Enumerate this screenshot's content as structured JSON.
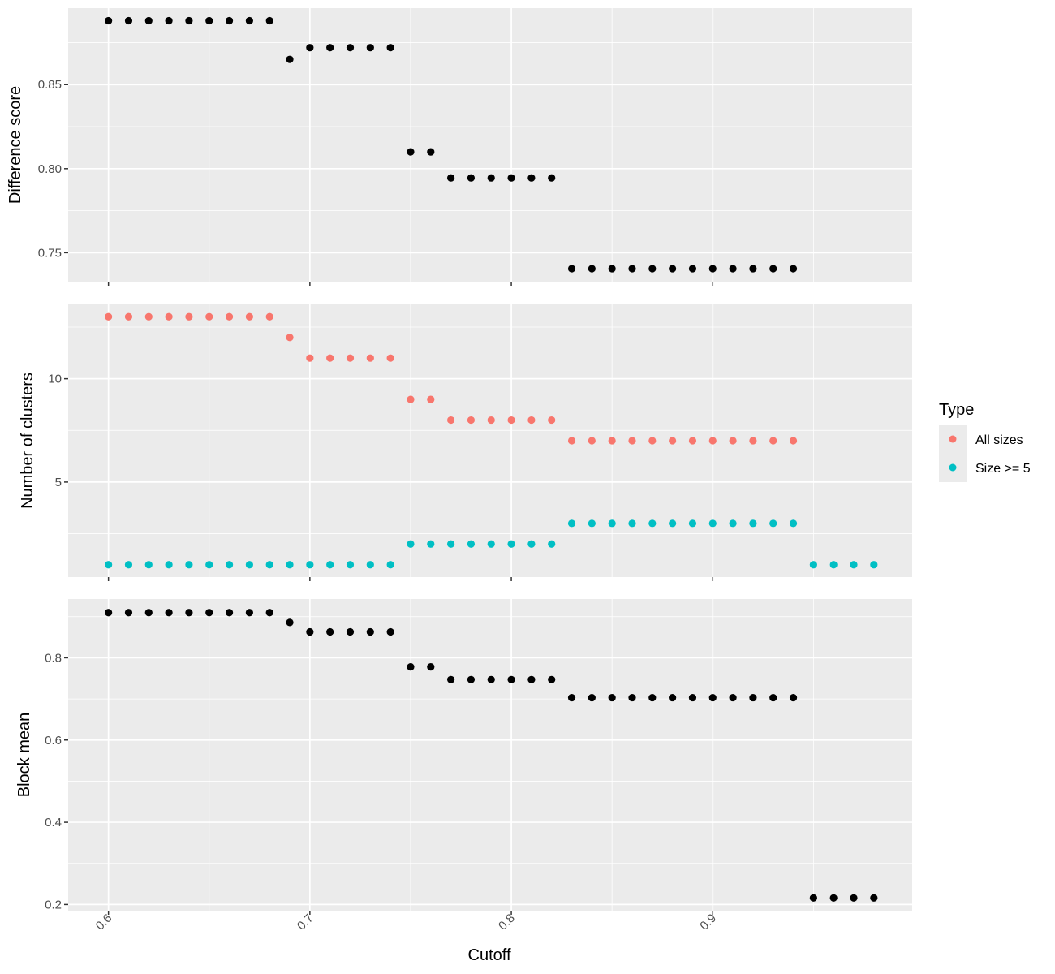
{
  "chart_data": {
    "type": "scatter",
    "xlabel": "Cutoff",
    "x_ticks": [
      0.6,
      0.7,
      0.8,
      0.9
    ],
    "x_tick_labels": [
      "0.6",
      "0.7",
      "0.8",
      "0.9"
    ],
    "xlim": [
      0.58,
      0.999
    ],
    "background": "#ebebeb",
    "grid": true,
    "legend": {
      "title": "Type",
      "placement": "right",
      "entries": [
        {
          "label": "All sizes",
          "color": "#f8766d"
        },
        {
          "label": "Size >= 5",
          "color": "#00bfc4"
        }
      ]
    },
    "panels": [
      {
        "ylabel": "Difference score",
        "ylim": [
          0.7328,
          0.8955
        ],
        "y_ticks": [
          0.75,
          0.8,
          0.85
        ],
        "y_tick_labels": [
          "0.75",
          "0.80",
          "0.85"
        ],
        "series": [
          {
            "color": "#000000",
            "x": [
              0.6,
              0.61,
              0.62,
              0.63,
              0.64,
              0.65,
              0.66,
              0.67,
              0.68,
              0.69,
              0.7,
              0.71,
              0.72,
              0.73,
              0.74,
              0.75,
              0.76,
              0.77,
              0.78,
              0.79,
              0.8,
              0.81,
              0.82,
              0.83,
              0.84,
              0.85,
              0.86,
              0.87,
              0.88,
              0.89,
              0.9,
              0.91,
              0.92,
              0.93,
              0.94
            ],
            "y": [
              0.888,
              0.888,
              0.888,
              0.888,
              0.888,
              0.888,
              0.888,
              0.888,
              0.888,
              0.865,
              0.872,
              0.872,
              0.872,
              0.872,
              0.872,
              0.81,
              0.81,
              0.7945,
              0.7945,
              0.7945,
              0.7945,
              0.7945,
              0.7945,
              0.7405,
              0.7405,
              0.7405,
              0.7405,
              0.7405,
              0.7405,
              0.7405,
              0.7405,
              0.7405,
              0.7405,
              0.7405,
              0.7405
            ]
          }
        ]
      },
      {
        "ylabel": "Number of clusters",
        "ylim": [
          0.4,
          13.6
        ],
        "y_ticks": [
          5,
          10
        ],
        "y_tick_labels": [
          "5",
          "10"
        ],
        "series": [
          {
            "name": "All sizes",
            "color": "#f8766d",
            "x": [
              0.6,
              0.61,
              0.62,
              0.63,
              0.64,
              0.65,
              0.66,
              0.67,
              0.68,
              0.69,
              0.7,
              0.71,
              0.72,
              0.73,
              0.74,
              0.75,
              0.76,
              0.77,
              0.78,
              0.79,
              0.8,
              0.81,
              0.82,
              0.83,
              0.84,
              0.85,
              0.86,
              0.87,
              0.88,
              0.89,
              0.9,
              0.91,
              0.92,
              0.93,
              0.94
            ],
            "y": [
              13,
              13,
              13,
              13,
              13,
              13,
              13,
              13,
              13,
              12,
              11,
              11,
              11,
              11,
              11,
              9,
              9,
              8,
              8,
              8,
              8,
              8,
              8,
              7,
              7,
              7,
              7,
              7,
              7,
              7,
              7,
              7,
              7,
              7,
              7
            ]
          },
          {
            "name": "Size >= 5",
            "color": "#00bfc4",
            "x": [
              0.6,
              0.61,
              0.62,
              0.63,
              0.64,
              0.65,
              0.66,
              0.67,
              0.68,
              0.69,
              0.7,
              0.71,
              0.72,
              0.73,
              0.74,
              0.75,
              0.76,
              0.77,
              0.78,
              0.79,
              0.8,
              0.81,
              0.82,
              0.83,
              0.84,
              0.85,
              0.86,
              0.87,
              0.88,
              0.89,
              0.9,
              0.91,
              0.92,
              0.93,
              0.94,
              0.95,
              0.96,
              0.97,
              0.98
            ],
            "y": [
              1,
              1,
              1,
              1,
              1,
              1,
              1,
              1,
              1,
              1,
              1,
              1,
              1,
              1,
              1,
              2,
              2,
              2,
              2,
              2,
              2,
              2,
              2,
              3,
              3,
              3,
              3,
              3,
              3,
              3,
              3,
              3,
              3,
              3,
              3,
              1,
              1,
              1,
              1
            ]
          }
        ]
      },
      {
        "ylabel": "Block mean",
        "ylim": [
          0.185,
          0.943
        ],
        "y_ticks": [
          0.2,
          0.4,
          0.6,
          0.8
        ],
        "y_tick_labels": [
          "0.2",
          "0.4",
          "0.6",
          "0.8"
        ],
        "series": [
          {
            "color": "#000000",
            "x": [
              0.6,
              0.61,
              0.62,
              0.63,
              0.64,
              0.65,
              0.66,
              0.67,
              0.68,
              0.69,
              0.7,
              0.71,
              0.72,
              0.73,
              0.74,
              0.75,
              0.76,
              0.77,
              0.78,
              0.79,
              0.8,
              0.81,
              0.82,
              0.83,
              0.84,
              0.85,
              0.86,
              0.87,
              0.88,
              0.89,
              0.9,
              0.91,
              0.92,
              0.93,
              0.94,
              0.95,
              0.96,
              0.97,
              0.98
            ],
            "y": [
              0.91,
              0.91,
              0.91,
              0.91,
              0.91,
              0.91,
              0.91,
              0.91,
              0.91,
              0.886,
              0.863,
              0.863,
              0.863,
              0.863,
              0.863,
              0.778,
              0.778,
              0.747,
              0.747,
              0.747,
              0.747,
              0.747,
              0.747,
              0.703,
              0.703,
              0.703,
              0.703,
              0.703,
              0.703,
              0.703,
              0.703,
              0.703,
              0.703,
              0.703,
              0.703,
              0.216,
              0.216,
              0.216,
              0.216
            ]
          }
        ]
      }
    ]
  }
}
